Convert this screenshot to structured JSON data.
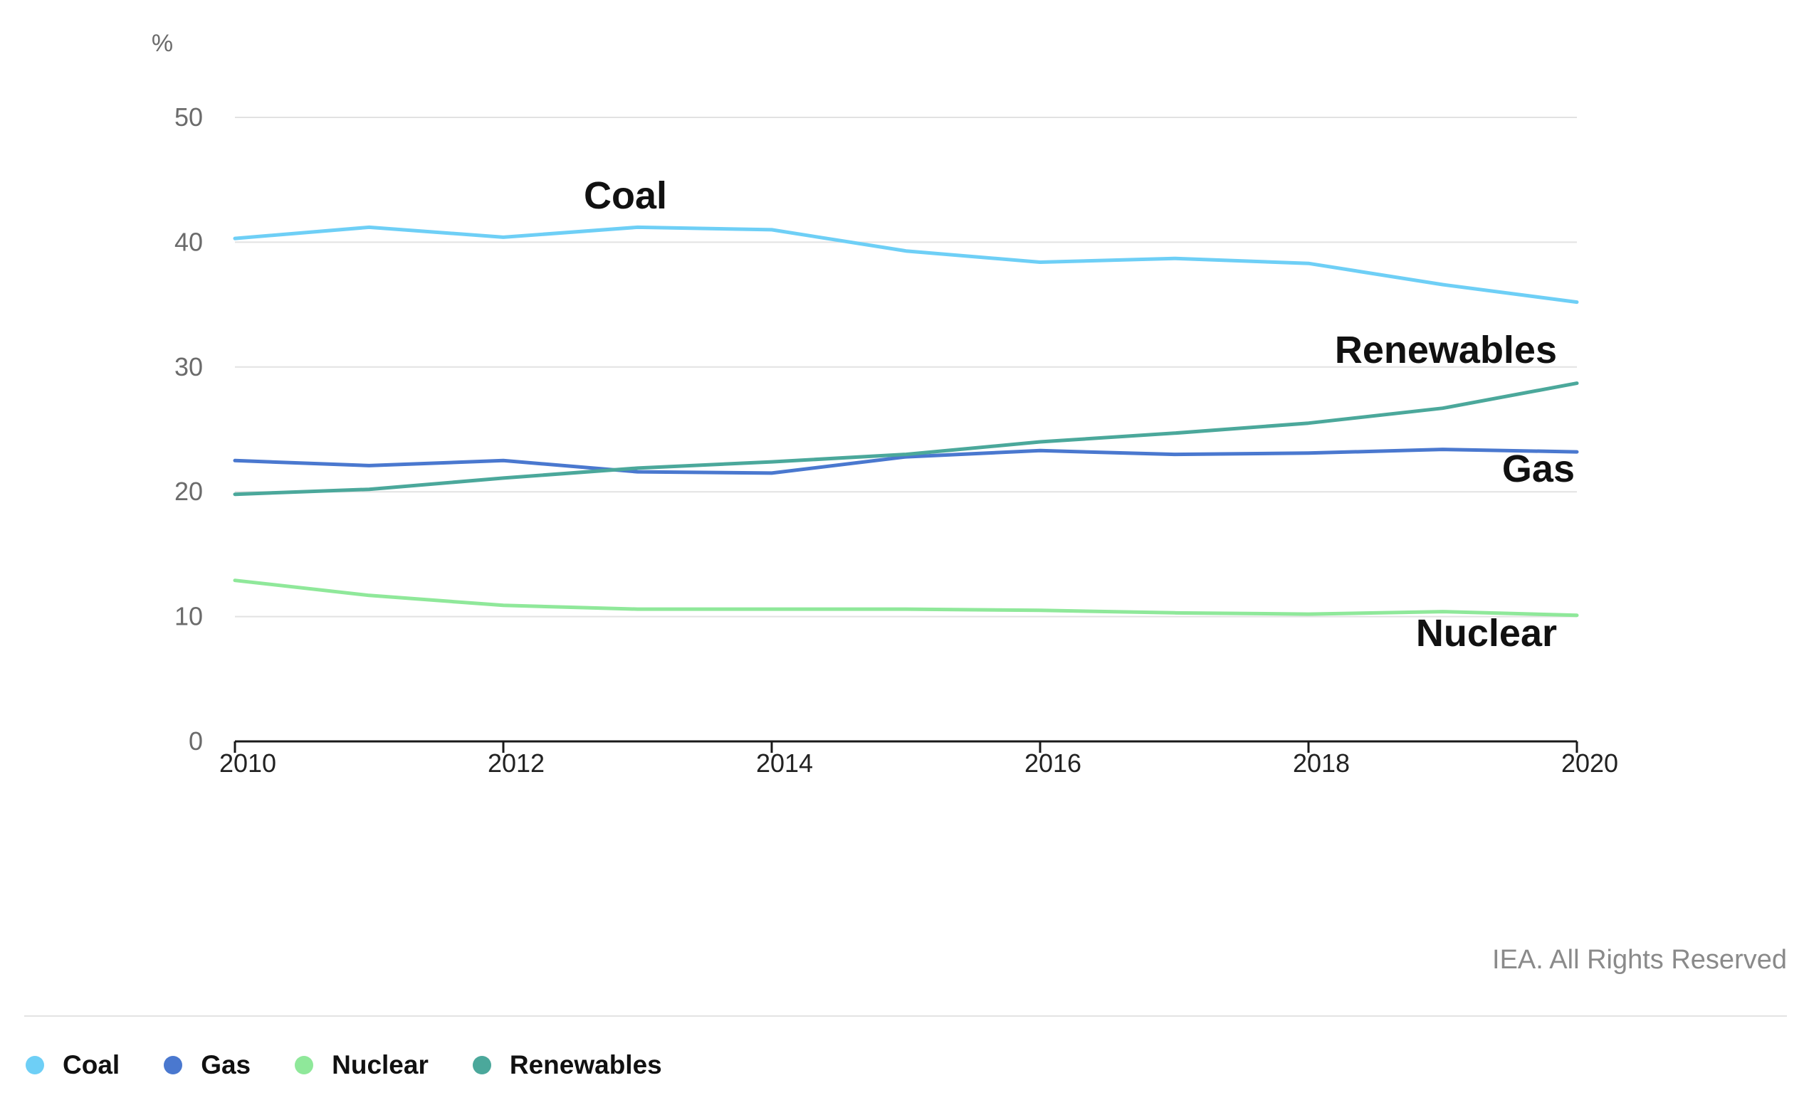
{
  "chart_data": {
    "type": "line",
    "unit_label": "%",
    "x": [
      2010,
      2011,
      2012,
      2013,
      2014,
      2015,
      2016,
      2017,
      2018,
      2019,
      2020
    ],
    "x_ticks": [
      "2010",
      "2012",
      "2014",
      "2016",
      "2018",
      "2020"
    ],
    "y_ticks": [
      "0",
      "10",
      "20",
      "30",
      "40",
      "50"
    ],
    "ylim": [
      0,
      50
    ],
    "grid": true,
    "legend_position": "bottom-left",
    "series": [
      {
        "name": "Coal",
        "color": "#6ecff6",
        "values": [
          40.3,
          41.2,
          40.4,
          41.2,
          41.0,
          39.3,
          38.4,
          38.7,
          38.3,
          36.6,
          35.2
        ]
      },
      {
        "name": "Gas",
        "color": "#4a78cf",
        "values": [
          22.5,
          22.1,
          22.5,
          21.6,
          21.5,
          22.8,
          23.3,
          23.0,
          23.1,
          23.4,
          23.2
        ]
      },
      {
        "name": "Nuclear",
        "color": "#8fe89a",
        "values": [
          12.9,
          11.7,
          10.9,
          10.6,
          10.6,
          10.6,
          10.5,
          10.3,
          10.2,
          10.4,
          10.1
        ]
      },
      {
        "name": "Renewables",
        "color": "#4ba89b",
        "values": [
          19.8,
          20.2,
          21.1,
          21.9,
          22.4,
          23.0,
          24.0,
          24.7,
          25.5,
          26.7,
          28.7
        ]
      }
    ]
  },
  "annotations": {
    "coal": "Coal",
    "renewables": "Renewables",
    "gas": "Gas",
    "nuclear": "Nuclear"
  },
  "credit": "IEA. All Rights Reserved",
  "legend": [
    {
      "label": "Coal",
      "color": "#6ecff6"
    },
    {
      "label": "Gas",
      "color": "#4a78cf"
    },
    {
      "label": "Nuclear",
      "color": "#8fe89a"
    },
    {
      "label": "Renewables",
      "color": "#4ba89b"
    }
  ]
}
